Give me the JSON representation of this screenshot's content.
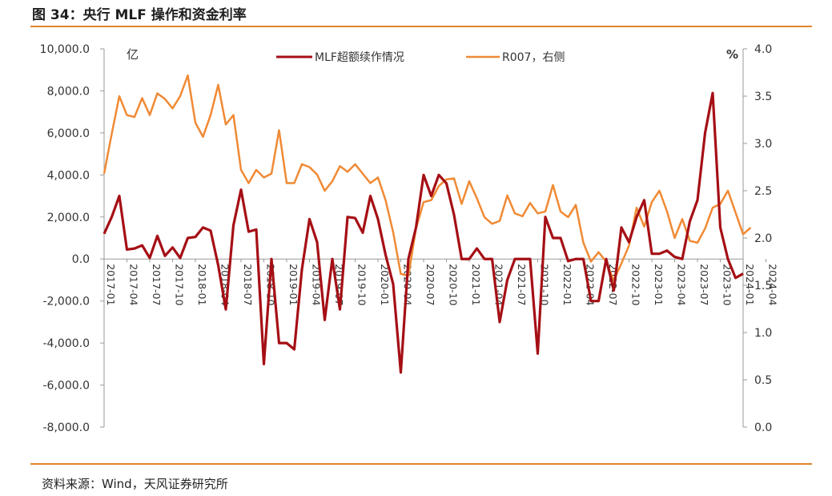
{
  "figure": {
    "title": "图 34：央行 MLF 操作和资金利率",
    "source": "资料来源：Wind，天风证券研究所"
  },
  "chart_data": {
    "type": "line",
    "left_unit": "亿",
    "right_unit": "%",
    "y_left": {
      "min": -8000,
      "max": 10000,
      "ticks": [
        "10,000.0",
        "8,000.0",
        "6,000.0",
        "4,000.0",
        "2,000.0",
        "0.0",
        "-2,000.0",
        "-4,000.0",
        "-6,000.0",
        "-8,000.0"
      ]
    },
    "y_right": {
      "min": 0.0,
      "max": 4.0,
      "ticks": [
        "4.0",
        "3.5",
        "3.0",
        "2.5",
        "2.0",
        "1.5",
        "1.0",
        "0.5",
        "0.0"
      ]
    },
    "x_start": "2017-01",
    "x_tick_labels": [
      "2017-01",
      "2017-04",
      "2017-07",
      "2017-10",
      "2018-01",
      "2018-04",
      "2018-07",
      "2018-10",
      "2019-01",
      "2019-04",
      "2019-07",
      "2019-10",
      "2020-01",
      "2020-04",
      "2020-07",
      "2020-10",
      "2021-01",
      "2021-04",
      "2021-07",
      "2021-10",
      "2022-01",
      "2022-04",
      "2022-07",
      "2022-10",
      "2023-01",
      "2023-04",
      "2023-07",
      "2023-10",
      "2024-01",
      "2024-04"
    ],
    "legend_position": "top",
    "series": [
      {
        "name": "MLF超额续作情况",
        "axis": "left",
        "color": "#a50f15",
        "values": [
          1200,
          2000,
          3000,
          450,
          500,
          650,
          50,
          1100,
          150,
          550,
          50,
          1000,
          1050,
          1500,
          1350,
          -300,
          -2400,
          1600,
          3300,
          1300,
          1400,
          -5000,
          0,
          -4000,
          -4000,
          -4300,
          -500,
          1900,
          800,
          -2900,
          0,
          -2400,
          2000,
          1950,
          1250,
          3000,
          1900,
          200,
          -1200,
          -5400,
          0,
          1500,
          4000,
          3000,
          4000,
          3600,
          2100,
          0,
          0,
          500,
          0,
          0,
          -3000,
          -1000,
          0,
          0,
          0,
          -4500,
          2000,
          1000,
          1000,
          -100,
          0,
          0,
          -2000,
          -2000,
          0,
          -1500,
          1500,
          800,
          2000,
          2800,
          250,
          250,
          400,
          100,
          0,
          1800,
          2800,
          6000,
          7900,
          1500,
          0,
          -900,
          -700
        ]
      },
      {
        "name": "R007，右侧",
        "axis": "right",
        "color": "#f08a35",
        "values": [
          2.68,
          3.1,
          3.5,
          3.3,
          3.28,
          3.48,
          3.3,
          3.53,
          3.47,
          3.37,
          3.5,
          3.72,
          3.22,
          3.07,
          3.3,
          3.62,
          3.2,
          3.3,
          2.72,
          2.58,
          2.72,
          2.64,
          2.68,
          3.14,
          2.58,
          2.58,
          2.78,
          2.75,
          2.67,
          2.5,
          2.6,
          2.76,
          2.7,
          2.78,
          2.68,
          2.58,
          2.64,
          2.4,
          2.06,
          1.62,
          1.6,
          2.1,
          2.38,
          2.4,
          2.55,
          2.62,
          2.63,
          2.36,
          2.6,
          2.42,
          2.22,
          2.15,
          2.18,
          2.45,
          2.26,
          2.23,
          2.37,
          2.26,
          2.28,
          2.56,
          2.28,
          2.22,
          2.35,
          1.95,
          1.75,
          1.85,
          1.75,
          1.55,
          1.73,
          1.92,
          2.32,
          2.12,
          2.38,
          2.5,
          2.28,
          2.0,
          2.2,
          1.97,
          1.95,
          2.1,
          2.32,
          2.36,
          2.5,
          2.27,
          2.04,
          2.11
        ]
      }
    ]
  }
}
